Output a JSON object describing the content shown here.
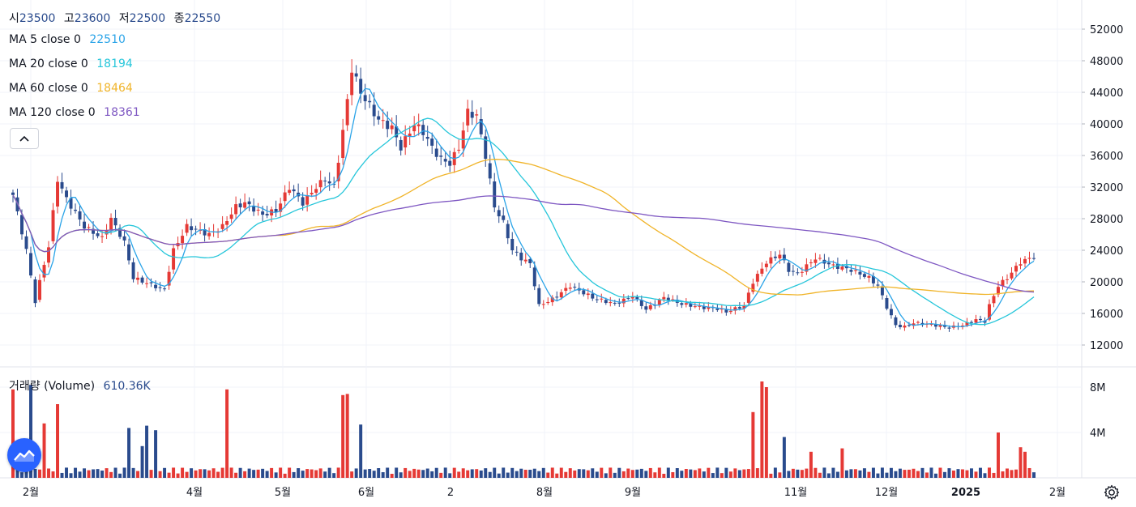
{
  "ohlc": {
    "open_key": "시",
    "open_val": "23500",
    "high_key": "고",
    "high_val": "23600",
    "low_key": "저",
    "low_val": "22500",
    "close_key": "종",
    "close_val": "22550"
  },
  "ma_legend": [
    {
      "label": "MA 5 close 0",
      "value": "22510",
      "color": "#2ba4e8"
    },
    {
      "label": "MA 20 close 0",
      "value": "18194",
      "color": "#26c6da"
    },
    {
      "label": "MA 60 close 0",
      "value": "18464",
      "color": "#f0b429"
    },
    {
      "label": "MA 120 close 0",
      "value": "18361",
      "color": "#7e57c2"
    }
  ],
  "volume_legend": {
    "label": "거래량 (Volume)",
    "value": "610.36K",
    "color": "#2a4b8d"
  },
  "colors": {
    "up": "#e53935",
    "down": "#2a4b8d",
    "grid": "#f0f3fa",
    "axis_text": "#131722"
  },
  "icons": {
    "collapse": "chevron-up-icon",
    "logo": "tradingview-logo-icon",
    "settings": "gear-icon"
  },
  "chart_data": {
    "type": "candlestick",
    "price_axis": {
      "ticks": [
        12000,
        16000,
        20000,
        24000,
        28000,
        32000,
        36000,
        40000,
        44000,
        48000,
        52000
      ]
    },
    "volume_axis": {
      "ticks": [
        "4M",
        "8M"
      ],
      "tick_values": [
        4000000,
        8000000
      ]
    },
    "time_axis": [
      {
        "label": "2월",
        "bold": false
      },
      {
        "label": "4월",
        "bold": false
      },
      {
        "label": "5월",
        "bold": false
      },
      {
        "label": "6월",
        "bold": false
      },
      {
        "label": "2",
        "bold": false
      },
      {
        "label": "8월",
        "bold": false
      },
      {
        "label": "9월",
        "bold": false
      },
      {
        "label": "11월",
        "bold": false
      },
      {
        "label": "12월",
        "bold": false
      },
      {
        "label": "2025",
        "bold": true
      },
      {
        "label": "2월",
        "bold": false
      }
    ],
    "price_anchors": [
      [
        0,
        31000
      ],
      [
        3,
        24000
      ],
      [
        5,
        17500
      ],
      [
        6,
        20000
      ],
      [
        8,
        24500
      ],
      [
        10,
        33000
      ],
      [
        12,
        30500
      ],
      [
        16,
        27000
      ],
      [
        20,
        25500
      ],
      [
        22,
        28000
      ],
      [
        25,
        25000
      ],
      [
        27,
        20500
      ],
      [
        33,
        19200
      ],
      [
        34,
        19000
      ],
      [
        36,
        24000
      ],
      [
        39,
        27000
      ],
      [
        44,
        26000
      ],
      [
        47,
        27000
      ],
      [
        50,
        29500
      ],
      [
        52,
        30000
      ],
      [
        56,
        28500
      ],
      [
        59,
        29000
      ],
      [
        62,
        32000
      ],
      [
        65,
        30000
      ],
      [
        68,
        32000
      ],
      [
        70,
        33000
      ],
      [
        72,
        32000
      ],
      [
        74,
        39000
      ],
      [
        76,
        47000
      ],
      [
        78,
        44000
      ],
      [
        82,
        40500
      ],
      [
        85,
        39500
      ],
      [
        87,
        37000
      ],
      [
        90,
        40000
      ],
      [
        92,
        39000
      ],
      [
        94,
        37000
      ],
      [
        96,
        35500
      ],
      [
        98,
        35000
      ],
      [
        100,
        37000
      ],
      [
        102,
        41500
      ],
      [
        104,
        41000
      ],
      [
        106,
        36000
      ],
      [
        108,
        29500
      ],
      [
        110,
        27500
      ],
      [
        112,
        24000
      ],
      [
        114,
        23000
      ],
      [
        116,
        22300
      ],
      [
        118,
        17000
      ],
      [
        121,
        17800
      ],
      [
        125,
        19500
      ],
      [
        130,
        18000
      ],
      [
        135,
        17200
      ],
      [
        139,
        18200
      ],
      [
        142,
        16500
      ],
      [
        146,
        18000
      ],
      [
        150,
        17200
      ],
      [
        154,
        16800
      ],
      [
        158,
        16600
      ],
      [
        160,
        16200
      ],
      [
        164,
        17000
      ],
      [
        166,
        20000
      ],
      [
        169,
        22500
      ],
      [
        172,
        23500
      ],
      [
        174,
        21500
      ],
      [
        176,
        21000
      ],
      [
        178,
        22000
      ],
      [
        180,
        23000
      ],
      [
        182,
        22500
      ],
      [
        184,
        22000
      ],
      [
        186,
        21800
      ],
      [
        188,
        21500
      ],
      [
        190,
        21000
      ],
      [
        192,
        20500
      ],
      [
        194,
        19500
      ],
      [
        196,
        16800
      ],
      [
        198,
        14500
      ],
      [
        200,
        14300
      ],
      [
        202,
        14800
      ],
      [
        204,
        14700
      ],
      [
        207,
        14500
      ],
      [
        210,
        14200
      ],
      [
        213,
        14500
      ],
      [
        216,
        15200
      ],
      [
        218,
        15000
      ],
      [
        219,
        17000
      ],
      [
        221,
        19500
      ],
      [
        223,
        20500
      ],
      [
        226,
        22500
      ],
      [
        229,
        23200
      ]
    ],
    "volume_spikes": {
      "0": 7.8,
      "4": 8.2,
      "7": 4.8,
      "10": 6.5,
      "26": 4.4,
      "29": 2.8,
      "30": 4.6,
      "32": 4.2,
      "48": 7.8,
      "74": 7.3,
      "75": 7.4,
      "78": 4.7,
      "166": 5.8,
      "168": 8.5,
      "169": 8.0,
      "173": 3.6,
      "179": 2.3,
      "186": 2.6,
      "221": 4.0,
      "226": 2.7,
      "227": 2.3
    },
    "ma_lines": [
      {
        "name": "MA 5 close 0",
        "period": 5,
        "color": "#2ba4e8"
      },
      {
        "name": "MA 20 close 0",
        "period": 20,
        "color": "#26c6da"
      },
      {
        "name": "MA 60 close 0",
        "period": 60,
        "color": "#f0b429"
      },
      {
        "name": "MA 120 close 0",
        "period": 120,
        "color": "#7e57c2"
      }
    ]
  }
}
